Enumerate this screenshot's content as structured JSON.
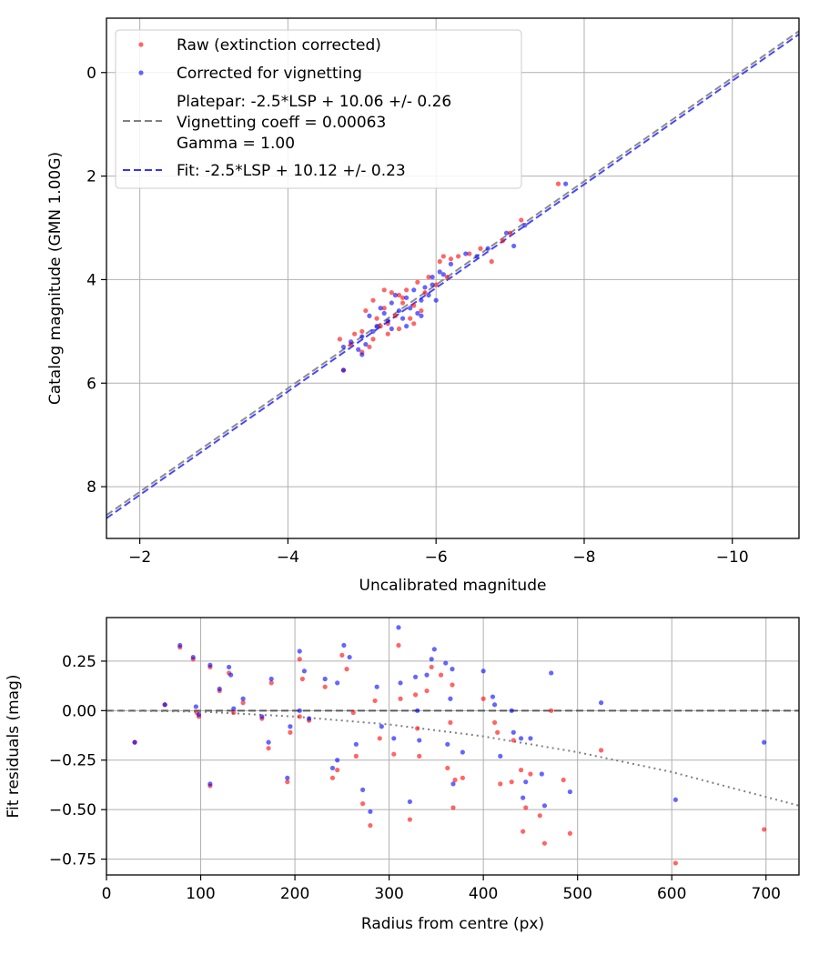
{
  "chart_data": [
    {
      "type": "scatter",
      "xlabel": "Uncalibrated magnitude",
      "ylabel": "Catalog magnitude (GMN 1.00G)",
      "xlim": [
        -1.55,
        -10.9
      ],
      "ylim": [
        9.0,
        -1.05
      ],
      "xticks": [
        -2,
        -4,
        -6,
        -8,
        -10
      ],
      "xtick_labels": [
        "−2",
        "−4",
        "−6",
        "−8",
        "−10"
      ],
      "yticks": [
        0,
        2,
        4,
        6,
        8
      ],
      "ytick_labels": [
        "0",
        "2",
        "4",
        "6",
        "8"
      ],
      "grid": true,
      "legend_position": "top-left",
      "legend": [
        {
          "type": "marker",
          "color": "#ff0000",
          "lines": [
            "Raw (extinction corrected)"
          ]
        },
        {
          "type": "marker",
          "color": "#0000ff",
          "lines": [
            "Corrected for vignetting"
          ]
        },
        {
          "type": "dashed",
          "color": "#808080",
          "lines": [
            "Platepar: -2.5*LSP + 10.06 +/- 0.26",
            "Vignetting coeff = 0.00063",
            "Gamma = 1.00"
          ]
        },
        {
          "type": "dashed",
          "color": "#3333ff",
          "lines": [
            "Fit: -2.5*LSP + 10.12 +/- 0.23"
          ]
        }
      ],
      "lines": [
        {
          "name": "Platepar",
          "color": "#808080",
          "x": [
            -1.55,
            -10.9
          ],
          "y": [
            8.55,
            -0.8
          ]
        },
        {
          "name": "Fit",
          "color": "#3333ff",
          "x": [
            -1.55,
            -10.9
          ],
          "y": [
            8.61,
            -0.74
          ]
        }
      ],
      "series": [
        {
          "name": "Raw (extinction corrected)",
          "color": "#ff0000",
          "points": [
            [
              -4.7,
              5.15
            ],
            [
              -4.85,
              5.25
            ],
            [
              -4.9,
              5.05
            ],
            [
              -5.0,
              5.0
            ],
            [
              -5.05,
              4.6
            ],
            [
              -5.1,
              5.3
            ],
            [
              -5.15,
              4.4
            ],
            [
              -5.2,
              4.75
            ],
            [
              -5.25,
              4.9
            ],
            [
              -5.3,
              4.2
            ],
            [
              -5.3,
              4.55
            ],
            [
              -5.35,
              4.85
            ],
            [
              -5.4,
              4.25
            ],
            [
              -5.45,
              4.7
            ],
            [
              -5.5,
              4.3
            ],
            [
              -5.5,
              4.95
            ],
            [
              -5.55,
              4.45
            ],
            [
              -5.6,
              4.2
            ],
            [
              -5.65,
              4.75
            ],
            [
              -5.7,
              4.5
            ],
            [
              -5.75,
              4.05
            ],
            [
              -5.8,
              4.6
            ],
            [
              -5.85,
              4.25
            ],
            [
              -5.9,
              3.95
            ],
            [
              -6.0,
              4.1
            ],
            [
              -6.05,
              3.65
            ],
            [
              -6.1,
              3.55
            ],
            [
              -6.2,
              3.6
            ],
            [
              -6.3,
              3.55
            ],
            [
              -6.45,
              3.5
            ],
            [
              -6.6,
              3.4
            ],
            [
              -6.75,
              3.65
            ],
            [
              -6.9,
              3.25
            ],
            [
              -7.0,
              3.1
            ],
            [
              -7.15,
              2.85
            ],
            [
              -7.65,
              2.15
            ],
            [
              -4.75,
              5.75
            ],
            [
              -5.0,
              5.4
            ],
            [
              -5.15,
              5.15
            ],
            [
              -5.35,
              5.05
            ],
            [
              -5.55,
              4.35
            ],
            [
              -5.7,
              4.85
            ],
            [
              -6.15,
              3.95
            ]
          ]
        },
        {
          "name": "Corrected for vignetting",
          "color": "#0000ff",
          "points": [
            [
              -4.75,
              5.3
            ],
            [
              -4.85,
              5.2
            ],
            [
              -4.95,
              5.35
            ],
            [
              -5.0,
              5.1
            ],
            [
              -5.05,
              5.25
            ],
            [
              -5.1,
              4.7
            ],
            [
              -5.15,
              5.0
            ],
            [
              -5.2,
              4.9
            ],
            [
              -5.25,
              4.55
            ],
            [
              -5.3,
              4.65
            ],
            [
              -5.35,
              4.8
            ],
            [
              -5.4,
              4.45
            ],
            [
              -5.45,
              4.3
            ],
            [
              -5.5,
              4.6
            ],
            [
              -5.55,
              4.75
            ],
            [
              -5.6,
              4.35
            ],
            [
              -5.65,
              4.55
            ],
            [
              -5.7,
              4.2
            ],
            [
              -5.75,
              4.65
            ],
            [
              -5.8,
              4.4
            ],
            [
              -5.85,
              4.15
            ],
            [
              -5.9,
              4.3
            ],
            [
              -5.95,
              4.1
            ],
            [
              -6.0,
              4.4
            ],
            [
              -6.05,
              3.85
            ],
            [
              -6.2,
              3.7
            ],
            [
              -6.4,
              3.5
            ],
            [
              -6.55,
              3.55
            ],
            [
              -6.7,
              3.4
            ],
            [
              -6.95,
              3.1
            ],
            [
              -7.05,
              3.35
            ],
            [
              -7.2,
              2.95
            ],
            [
              -7.75,
              2.15
            ],
            [
              -4.75,
              5.75
            ],
            [
              -5.0,
              5.45
            ],
            [
              -5.4,
              4.95
            ],
            [
              -5.6,
              4.9
            ],
            [
              -5.8,
              4.7
            ],
            [
              -6.1,
              3.9
            ],
            [
              -5.95,
              3.95
            ]
          ]
        }
      ]
    },
    {
      "type": "scatter",
      "xlabel": "Radius from centre (px)",
      "ylabel": "Fit residuals (mag)",
      "xlim": [
        0,
        735
      ],
      "ylim": [
        -0.83,
        0.47
      ],
      "xticks": [
        0,
        100,
        200,
        300,
        400,
        500,
        600,
        700
      ],
      "xtick_labels": [
        "0",
        "100",
        "200",
        "300",
        "400",
        "500",
        "600",
        "700"
      ],
      "yticks": [
        0.25,
        0.0,
        -0.25,
        -0.5,
        -0.75
      ],
      "ytick_labels": [
        "0.25",
        "0.00",
        "−0.25",
        "−0.50",
        "−0.75"
      ],
      "grid": true,
      "lines": [
        {
          "name": "zero",
          "style": "dashed",
          "color": "#505050",
          "x": [
            0,
            735
          ],
          "y": [
            0,
            0
          ]
        },
        {
          "name": "vignetting model",
          "style": "dotted",
          "color": "#808080",
          "x": [
            0,
            100,
            200,
            300,
            400,
            500,
            600,
            735
          ],
          "y": [
            0,
            -0.005,
            -0.03,
            -0.07,
            -0.13,
            -0.21,
            -0.31,
            -0.48
          ]
        }
      ],
      "series": [
        {
          "name": "Raw",
          "color": "#ff0000",
          "points": [
            [
              30,
              -0.16
            ],
            [
              62,
              0.03
            ],
            [
              78,
              0.32
            ],
            [
              92,
              0.26
            ],
            [
              96,
              -0.01
            ],
            [
              98,
              -0.03
            ],
            [
              110,
              -0.38
            ],
            [
              110,
              0.22
            ],
            [
              120,
              0.1
            ],
            [
              130,
              0.19
            ],
            [
              135,
              -0.01
            ],
            [
              145,
              0.04
            ],
            [
              165,
              -0.04
            ],
            [
              172,
              -0.19
            ],
            [
              175,
              0.14
            ],
            [
              192,
              -0.36
            ],
            [
              195,
              -0.11
            ],
            [
              205,
              -0.03
            ],
            [
              205,
              0.26
            ],
            [
              208,
              0.16
            ],
            [
              215,
              -0.05
            ],
            [
              232,
              0.12
            ],
            [
              240,
              -0.34
            ],
            [
              245,
              -0.3
            ],
            [
              250,
              0.28
            ],
            [
              255,
              0.21
            ],
            [
              262,
              -0.01
            ],
            [
              265,
              -0.23
            ],
            [
              272,
              -0.47
            ],
            [
              280,
              -0.58
            ],
            [
              285,
              0.05
            ],
            [
              290,
              -0.14
            ],
            [
              305,
              -0.22
            ],
            [
              310,
              0.33
            ],
            [
              312,
              0.06
            ],
            [
              322,
              -0.55
            ],
            [
              328,
              0.08
            ],
            [
              330,
              -0.09
            ],
            [
              332,
              -0.23
            ],
            [
              340,
              0.1
            ],
            [
              345,
              0.22
            ],
            [
              355,
              0.18
            ],
            [
              362,
              -0.29
            ],
            [
              365,
              -0.06
            ],
            [
              367,
              0.13
            ],
            [
              368,
              -0.49
            ],
            [
              370,
              -0.35
            ],
            [
              378,
              -0.34
            ],
            [
              400,
              0.06
            ],
            [
              412,
              -0.06
            ],
            [
              415,
              -0.11
            ],
            [
              418,
              -0.37
            ],
            [
              430,
              -0.36
            ],
            [
              432,
              -0.15
            ],
            [
              440,
              -0.3
            ],
            [
              442,
              -0.61
            ],
            [
              445,
              -0.49
            ],
            [
              450,
              -0.32
            ],
            [
              460,
              -0.53
            ],
            [
              465,
              -0.67
            ],
            [
              472,
              0.0
            ],
            [
              485,
              -0.35
            ],
            [
              492,
              -0.62
            ],
            [
              525,
              -0.2
            ],
            [
              604,
              -0.77
            ],
            [
              698,
              -0.6
            ]
          ]
        },
        {
          "name": "Corrected",
          "color": "#0000ff",
          "points": [
            [
              30,
              -0.16
            ],
            [
              62,
              0.03
            ],
            [
              78,
              0.33
            ],
            [
              92,
              0.27
            ],
            [
              95,
              0.02
            ],
            [
              98,
              -0.02
            ],
            [
              110,
              -0.37
            ],
            [
              110,
              0.23
            ],
            [
              120,
              0.11
            ],
            [
              130,
              0.22
            ],
            [
              132,
              0.18
            ],
            [
              135,
              0.01
            ],
            [
              145,
              0.06
            ],
            [
              165,
              -0.03
            ],
            [
              172,
              -0.16
            ],
            [
              175,
              0.16
            ],
            [
              192,
              -0.34
            ],
            [
              195,
              -0.08
            ],
            [
              205,
              0.0
            ],
            [
              205,
              0.3
            ],
            [
              210,
              0.2
            ],
            [
              215,
              -0.04
            ],
            [
              232,
              0.16
            ],
            [
              240,
              -0.29
            ],
            [
              245,
              -0.25
            ],
            [
              245,
              0.14
            ],
            [
              252,
              0.33
            ],
            [
              258,
              0.27
            ],
            [
              265,
              -0.17
            ],
            [
              272,
              -0.4
            ],
            [
              280,
              -0.51
            ],
            [
              287,
              0.12
            ],
            [
              292,
              -0.08
            ],
            [
              305,
              -0.14
            ],
            [
              310,
              0.42
            ],
            [
              312,
              0.14
            ],
            [
              322,
              -0.46
            ],
            [
              328,
              0.17
            ],
            [
              330,
              0.0
            ],
            [
              332,
              -0.15
            ],
            [
              340,
              0.18
            ],
            [
              345,
              0.26
            ],
            [
              348,
              0.31
            ],
            [
              360,
              0.24
            ],
            [
              362,
              -0.17
            ],
            [
              365,
              0.06
            ],
            [
              367,
              0.21
            ],
            [
              368,
              -0.37
            ],
            [
              378,
              -0.21
            ],
            [
              400,
              0.2
            ],
            [
              410,
              0.07
            ],
            [
              412,
              0.03
            ],
            [
              418,
              -0.23
            ],
            [
              430,
              0.0
            ],
            [
              432,
              -0.11
            ],
            [
              440,
              -0.14
            ],
            [
              442,
              -0.44
            ],
            [
              445,
              -0.36
            ],
            [
              450,
              -0.14
            ],
            [
              462,
              -0.32
            ],
            [
              465,
              -0.48
            ],
            [
              472,
              0.19
            ],
            [
              492,
              -0.41
            ],
            [
              525,
              0.04
            ],
            [
              604,
              -0.45
            ],
            [
              698,
              -0.16
            ]
          ]
        }
      ]
    }
  ]
}
